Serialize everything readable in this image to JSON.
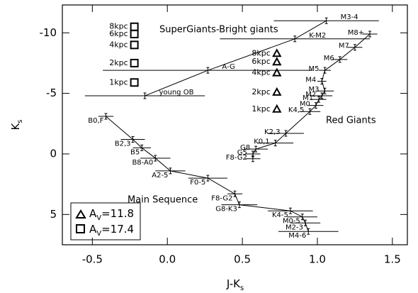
{
  "chart_data": {
    "type": "errorbar",
    "xlabel": {
      "main": "J-K",
      "sub": "s"
    },
    "ylabel": {
      "main": "K",
      "sub": "s"
    },
    "xlim": [
      -0.7,
      1.6
    ],
    "ylim": [
      -12.3,
      7.5
    ],
    "y_inverted": true,
    "xticks": [
      -0.5,
      {
        "value": 0,
        "label": "0.0"
      },
      0.5,
      {
        "value": 1,
        "label": "1.0"
      },
      1.5
    ],
    "yticks": [
      -10,
      -5,
      0,
      5
    ],
    "color": "#000000",
    "series": [
      {
        "labels": [
          "B0,F",
          "B2,3",
          "B5",
          "B8-A0",
          "A2-5",
          "F0-5",
          "F8-G2",
          "G8-K3",
          "K4-5",
          "M0-5",
          "M2-3",
          "M4-6"
        ],
        "x": [
          -0.41,
          -0.23,
          -0.17,
          -0.08,
          0.02,
          0.27,
          0.45,
          0.48,
          0.82,
          0.9,
          0.92,
          0.94
        ],
        "y": [
          -3.1,
          -1.2,
          -0.5,
          0.35,
          1.4,
          2.0,
          3.3,
          4.2,
          4.7,
          5.2,
          5.7,
          6.4
        ],
        "xerr": [
          0.05,
          0.08,
          0.06,
          0.1,
          0.1,
          0.13,
          0.05,
          0.12,
          0.15,
          0.1,
          0.1,
          0.2
        ]
      },
      {
        "labels": [
          "F8-G2",
          "G5",
          "G8",
          "K0,1",
          "K2,3",
          "K4,5",
          "M0",
          "M1",
          "M2",
          "M3",
          "M4",
          "M5",
          "M6",
          "M7",
          "M8+"
        ],
        "x": [
          0.57,
          0.57,
          0.59,
          0.72,
          0.79,
          0.95,
          0.99,
          1.01,
          1.03,
          1.05,
          1.03,
          1.05,
          1.15,
          1.25,
          1.35
        ],
        "y": [
          0.4,
          0,
          -0.4,
          -0.9,
          -1.7,
          -3.5,
          -4.0,
          -4.5,
          -4.8,
          -5.2,
          -6.0,
          -6.9,
          -7.8,
          -8.8,
          -9.9
        ],
        "xerr": [
          0.05,
          0.05,
          0.08,
          0.12,
          0.12,
          0.07,
          0.05,
          0.05,
          0.07,
          0.06,
          0.03,
          0.04,
          0.05,
          0.05,
          0.05
        ]
      },
      {
        "labels": [
          "young OB",
          "A-G",
          "K-M2",
          "M3-4"
        ],
        "x": [
          -0.15,
          0.27,
          0.85,
          1.06
        ],
        "y": [
          -4.8,
          -6.9,
          -9.5,
          -11.0
        ],
        "xerr": [
          0.4,
          0.7,
          0.5,
          0.35
        ]
      }
    ],
    "markers": [
      {
        "shape": "triangle",
        "x": 0.73,
        "y": [
          -8.3,
          -7.6,
          -6.7,
          -5.1,
          -3.7
        ],
        "labels": [
          "8kpc",
          "6kpc",
          "4kpc",
          "2kpc",
          "1kpc"
        ]
      },
      {
        "shape": "square",
        "x": -0.22,
        "y": [
          -10.5,
          -9.9,
          -9.0,
          -7.5,
          -5.9
        ],
        "labels": [
          "8kpc",
          "6kpc",
          "4kpc",
          "2kpc",
          "1kpc"
        ]
      }
    ],
    "legend": [
      {
        "symbol": "A",
        "sub": "V",
        "text": "=11.8"
      },
      {
        "symbol": "A",
        "sub": "V",
        "text": "=17.4"
      }
    ],
    "annotations": [
      "SuperGiants-Bright giants",
      "Red Giants",
      "Main Sequence"
    ]
  }
}
